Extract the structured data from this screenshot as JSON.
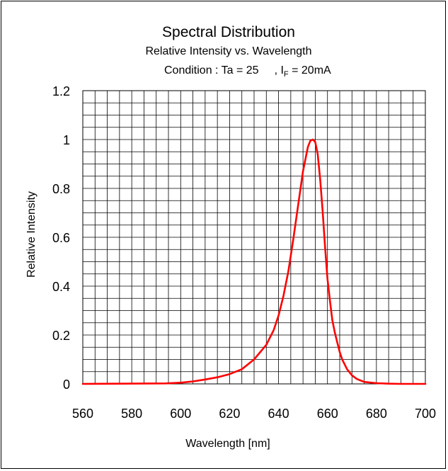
{
  "chart_data": {
    "type": "line",
    "title": "Spectral Distribution",
    "subtitle": "Relative Intensity vs. Wavelength",
    "condition": {
      "prefix": "Condition : Ta = 25",
      "separator": ", I",
      "subscript": "F",
      "suffix": " = 20mA"
    },
    "xlabel": "Wavelength [nm]",
    "ylabel": "Relative Intensity",
    "xlim": [
      560,
      700
    ],
    "ylim": [
      0,
      1.2
    ],
    "x_ticks": [
      560,
      580,
      600,
      620,
      640,
      660,
      680,
      700
    ],
    "y_ticks": [
      0,
      0.2,
      0.4,
      0.6,
      0.8,
      1,
      1.2
    ],
    "x_tick_labels": [
      "560",
      "580",
      "600",
      "620",
      "640",
      "660",
      "680",
      "700"
    ],
    "y_tick_labels": [
      "0",
      "0.2",
      "0.4",
      "0.6",
      "0.8",
      "1",
      "1.2"
    ],
    "grid": true,
    "grid_step_x": 5,
    "grid_step_y": 0.05,
    "series": [
      {
        "color": "#ff0000",
        "x": [
          560,
          594,
          600,
          605,
          610,
          615,
          620,
          625,
          630,
          635,
          638,
          640,
          642,
          644,
          646,
          648,
          650,
          652,
          653,
          654,
          655,
          656,
          657,
          658,
          659,
          660,
          661,
          662,
          663,
          664,
          665,
          666,
          668,
          670,
          672,
          675,
          680,
          685,
          690,
          700
        ],
        "y": [
          0,
          0.002,
          0.005,
          0.01,
          0.018,
          0.027,
          0.04,
          0.06,
          0.1,
          0.16,
          0.22,
          0.28,
          0.36,
          0.46,
          0.59,
          0.73,
          0.87,
          0.97,
          0.995,
          1.0,
          0.99,
          0.94,
          0.84,
          0.71,
          0.56,
          0.43,
          0.34,
          0.26,
          0.21,
          0.17,
          0.13,
          0.1,
          0.06,
          0.035,
          0.02,
          0.008,
          0.003,
          0.001,
          0.0,
          0.0
        ]
      }
    ]
  }
}
